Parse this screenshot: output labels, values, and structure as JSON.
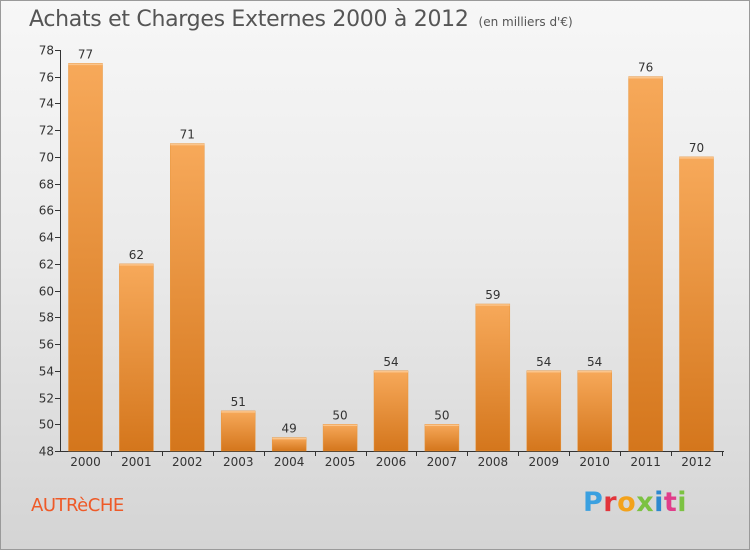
{
  "title": "Achats et Charges Externes 2000 à 2012",
  "subtitle": "(en milliers d'€)",
  "city": "AUTRèCHE",
  "logo": {
    "letters": [
      "P",
      "r",
      "o",
      "x",
      "i",
      "t",
      "i"
    ]
  },
  "colors": {
    "bar_light": "#f7a95a",
    "bar_dark": "#d4761c",
    "city": "#ee5a28",
    "axis": "#333333"
  },
  "chart_data": {
    "type": "bar",
    "categories": [
      "2000",
      "2001",
      "2002",
      "2003",
      "2004",
      "2005",
      "2006",
      "2007",
      "2008",
      "2009",
      "2010",
      "2011",
      "2012"
    ],
    "values": [
      77,
      62,
      71,
      51,
      49,
      50,
      54,
      50,
      59,
      54,
      54,
      76,
      70
    ],
    "title": "Achats et Charges Externes 2000 à 2012",
    "subtitle": "(en milliers d'€)",
    "xlabel": "",
    "ylabel": "",
    "ylim": [
      48,
      78
    ],
    "yticks": [
      48,
      50,
      52,
      54,
      56,
      58,
      60,
      62,
      64,
      66,
      68,
      70,
      72,
      74,
      76,
      78
    ],
    "grid": false,
    "legend": "none"
  }
}
